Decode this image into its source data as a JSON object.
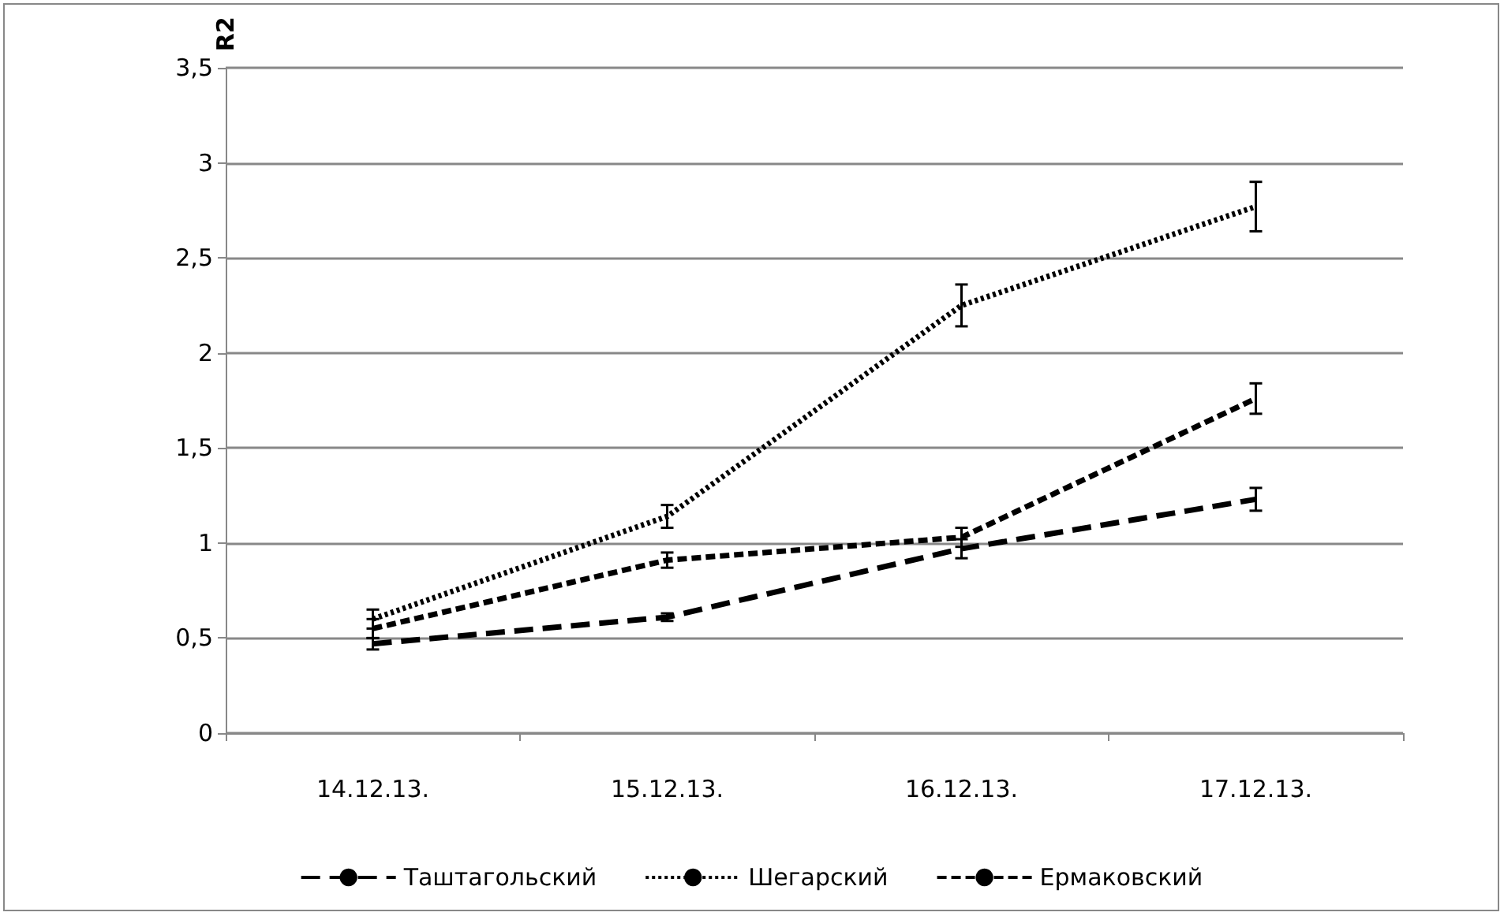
{
  "chart_data": {
    "type": "line",
    "ylabel": "R2",
    "categories": [
      "14.12.13.",
      "15.12.13.",
      "16.12.13.",
      "17.12.13."
    ],
    "series": [
      {
        "name": "Таштагольский",
        "color": "#000000",
        "line_style": "dashed",
        "values": [
          0.47,
          0.61,
          0.97,
          1.23
        ],
        "errors": [
          0.03,
          0.02,
          0.05,
          0.06
        ]
      },
      {
        "name": "Шегарский",
        "color": "#000000",
        "line_style": "dotted",
        "values": [
          0.6,
          1.14,
          2.25,
          2.77
        ],
        "errors": [
          0.05,
          0.06,
          0.11,
          0.13
        ]
      },
      {
        "name": "Ермаковский",
        "color": "#000000",
        "line_style": "dashed",
        "values": [
          0.55,
          0.91,
          1.03,
          1.76
        ],
        "errors": [
          0.05,
          0.04,
          0.05,
          0.08
        ]
      }
    ],
    "ylim": [
      0,
      3.5
    ],
    "yticks": [
      0,
      {
        "value": 0.5,
        "label": "0,5"
      },
      1,
      {
        "value": 1.5,
        "label": "1,5"
      },
      2,
      {
        "value": 2.5,
        "label": "2,5"
      },
      3,
      {
        "value": 3.5,
        "label": "3,5"
      }
    ],
    "grid": "y",
    "legend": "bottom",
    "marker": "none"
  }
}
